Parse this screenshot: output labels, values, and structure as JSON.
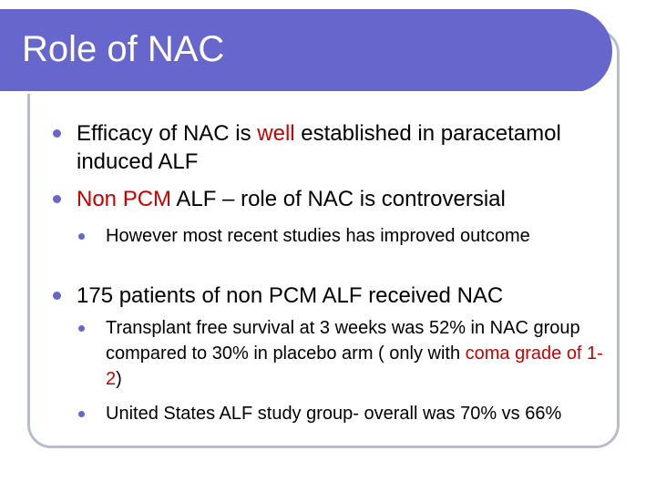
{
  "slide": {
    "title": "Role of NAC",
    "bullets": [
      {
        "level": 1,
        "parts": [
          "Efficacy of NAC is ",
          "well",
          " established in paracetamol induced ALF"
        ]
      },
      {
        "level": 1,
        "parts": [
          "Non PCM",
          " ALF – role of NAC is controversial"
        ]
      },
      {
        "level": 2,
        "text": "However most recent studies has improved outcome"
      },
      {
        "level": 1,
        "text": "175 patients of non PCM ALF received NAC"
      },
      {
        "level": 2,
        "parts": [
          "Transplant free survival at 3 weeks was 52% in NAC group compared to 30% in placebo arm ( only with ",
          "coma grade of 1-2",
          ")"
        ]
      },
      {
        "level": 2,
        "text": "United States ALF study group- overall was 70% vs 66%"
      }
    ]
  },
  "colors": {
    "title_bar": "#6666cc",
    "bullet": "#6666cc",
    "highlight": "#cc0000",
    "frame_border": "#b9bccd"
  }
}
